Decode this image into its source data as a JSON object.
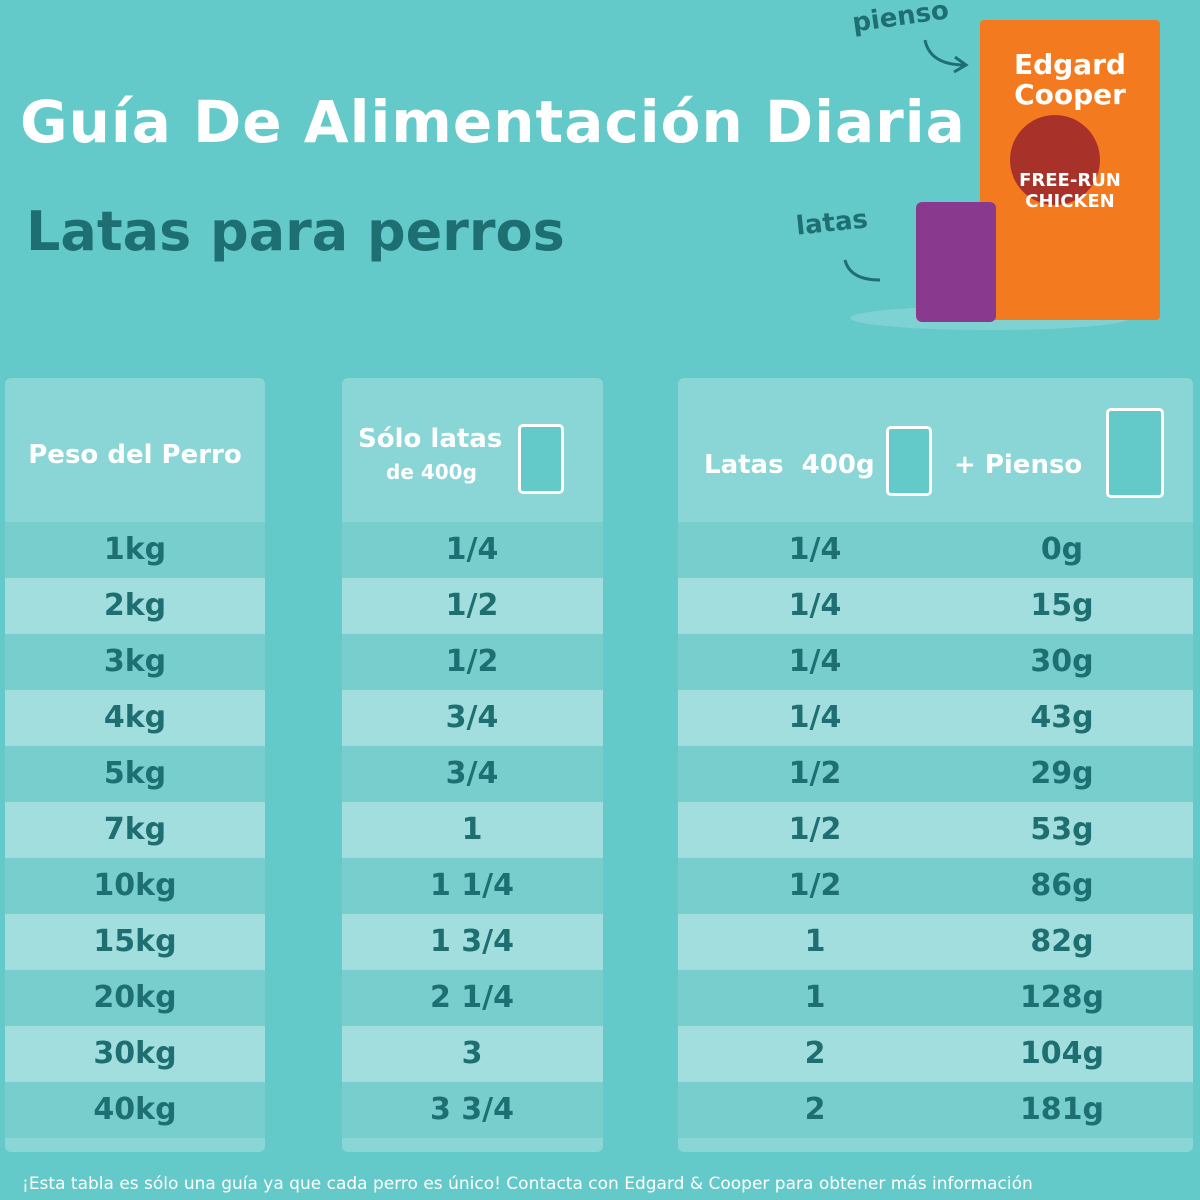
{
  "header": {
    "title": "Guía De Alimentación Diaria",
    "subtitle": "Latas para perros"
  },
  "product": {
    "dry_label": "pienso",
    "can_label": "latas",
    "brand": "Edgard Cooper",
    "flavor": "FREE-RUN CHICKEN"
  },
  "table": {
    "headers": {
      "weight": "Peso del Perro",
      "only_cans": "Sólo latas",
      "only_cans_sub": "de 400g",
      "cans": "Latas  400g",
      "kibble": "+ Pienso"
    },
    "rows": [
      [
        "1kg",
        "1/4",
        "1/4",
        "0g"
      ],
      [
        "2kg",
        "1/2",
        "1/4",
        "15g"
      ],
      [
        "3kg",
        "1/2",
        "1/4",
        "30g"
      ],
      [
        "4kg",
        "3/4",
        "1/4",
        "43g"
      ],
      [
        "5kg",
        "3/4",
        "1/2",
        "29g"
      ],
      [
        "7kg",
        "1",
        "1/2",
        "53g"
      ],
      [
        "10kg",
        "1 1/4",
        "1/2",
        "86g"
      ],
      [
        "15kg",
        "1 3/4",
        "1",
        "82g"
      ],
      [
        "20kg",
        "2 1/4",
        "1",
        "128g"
      ],
      [
        "30kg",
        "3",
        "2",
        "104g"
      ],
      [
        "40kg",
        "3 3/4",
        "2",
        "181g"
      ]
    ]
  },
  "footnote": "¡Esta tabla es sólo una guía ya que cada perro es único! Contacta con Edgard & Cooper para obtener más información"
}
